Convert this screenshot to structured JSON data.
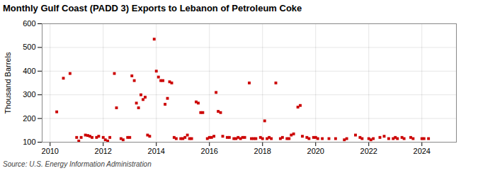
{
  "chart_data": {
    "type": "scatter",
    "title": "Monthly Gulf Coast (PADD 3) Exports to Lebanon of Petroleum Coke",
    "ylabel": "Thousand Barrels",
    "source": "Source: U.S. Energy Information Administration",
    "color": "#cc0000",
    "marker": "square",
    "grid": true,
    "xlim": [
      2009.7,
      2025.3
    ],
    "xticks": [
      2010,
      2012,
      2014,
      2016,
      2018,
      2020,
      2022,
      2024
    ],
    "ylim": [
      100,
      600
    ],
    "yticks": [
      100,
      200,
      300,
      400,
      500,
      600
    ],
    "x": [
      2010.25,
      2010.5,
      2010.75,
      2011.0,
      2011.08,
      2011.17,
      2011.33,
      2011.42,
      2011.5,
      2011.58,
      2011.75,
      2011.83,
      2012.0,
      2012.08,
      2012.17,
      2012.25,
      2012.42,
      2012.5,
      2012.67,
      2012.75,
      2012.92,
      2013.0,
      2013.08,
      2013.17,
      2013.25,
      2013.33,
      2013.42,
      2013.5,
      2013.58,
      2013.67,
      2013.75,
      2013.92,
      2014.0,
      2014.08,
      2014.17,
      2014.25,
      2014.33,
      2014.42,
      2014.5,
      2014.58,
      2014.67,
      2014.75,
      2014.92,
      2015.0,
      2015.08,
      2015.17,
      2015.25,
      2015.33,
      2015.5,
      2015.58,
      2015.67,
      2015.75,
      2015.92,
      2016.0,
      2016.08,
      2016.17,
      2016.25,
      2016.33,
      2016.42,
      2016.5,
      2016.67,
      2016.75,
      2016.92,
      2017.0,
      2017.08,
      2017.17,
      2017.25,
      2017.33,
      2017.5,
      2017.58,
      2017.67,
      2017.75,
      2017.92,
      2018.0,
      2018.08,
      2018.17,
      2018.25,
      2018.33,
      2018.5,
      2018.67,
      2018.75,
      2018.92,
      2019.0,
      2019.08,
      2019.17,
      2019.33,
      2019.42,
      2019.5,
      2019.67,
      2019.75,
      2019.92,
      2020.0,
      2020.08,
      2020.25,
      2020.5,
      2020.75,
      2021.08,
      2021.17,
      2021.5,
      2021.67,
      2021.75,
      2022.0,
      2022.08,
      2022.17,
      2022.42,
      2022.58,
      2022.75,
      2022.92,
      2023.0,
      2023.08,
      2023.25,
      2023.33,
      2023.58,
      2023.67,
      2024.0,
      2024.08,
      2024.25
    ],
    "values": [
      228,
      370,
      390,
      120,
      105,
      120,
      130,
      128,
      125,
      120,
      120,
      125,
      120,
      110,
      105,
      120,
      390,
      245,
      115,
      110,
      120,
      120,
      380,
      360,
      265,
      245,
      300,
      280,
      290,
      130,
      125,
      535,
      400,
      375,
      360,
      360,
      260,
      285,
      355,
      350,
      120,
      115,
      115,
      115,
      120,
      130,
      115,
      115,
      270,
      265,
      225,
      225,
      115,
      120,
      120,
      125,
      310,
      230,
      225,
      125,
      120,
      120,
      115,
      115,
      120,
      115,
      120,
      120,
      350,
      115,
      115,
      115,
      120,
      115,
      190,
      115,
      120,
      115,
      350,
      115,
      120,
      115,
      115,
      130,
      135,
      248,
      255,
      125,
      120,
      115,
      120,
      120,
      115,
      115,
      115,
      115,
      110,
      115,
      130,
      120,
      115,
      115,
      110,
      115,
      120,
      125,
      115,
      115,
      120,
      115,
      120,
      115,
      120,
      115,
      115,
      115,
      115
    ]
  }
}
